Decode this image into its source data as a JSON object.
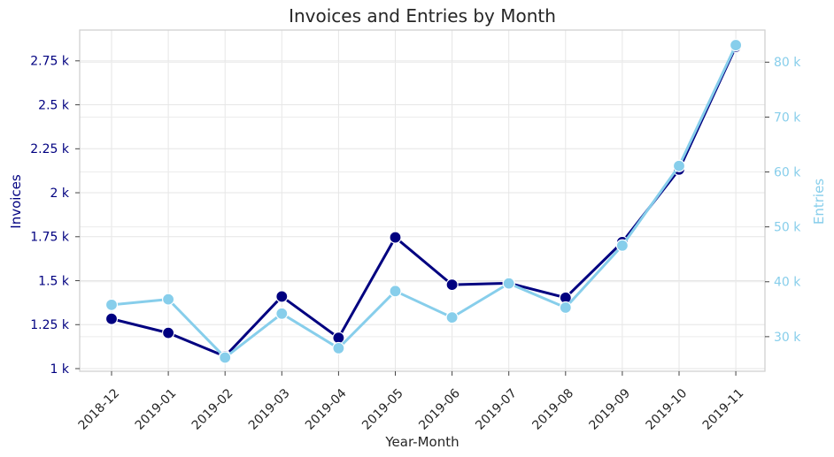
{
  "chart_data": {
    "type": "line",
    "title": "Invoices and Entries by Month",
    "xlabel": "Year-Month",
    "categories": [
      "2018-12",
      "2019-01",
      "2019-02",
      "2019-03",
      "2019-04",
      "2019-05",
      "2019-06",
      "2019-07",
      "2019-08",
      "2019-09",
      "2019-10",
      "2019-11"
    ],
    "left_axis": {
      "label": "Invoices",
      "ylim": [
        985,
        2925
      ],
      "ticks": [
        1000,
        1250,
        1500,
        1750,
        2000,
        2250,
        2500,
        2750
      ],
      "tick_labels": [
        "1 k",
        "1.25 k",
        "1.5 k",
        "1.75 k",
        "2 k",
        "2.25 k",
        "2.5 k",
        "2.75 k"
      ],
      "color": "#000080"
    },
    "right_axis": {
      "label": "Entries",
      "ylim": [
        23700,
        85850
      ],
      "ticks": [
        30000,
        40000,
        50000,
        60000,
        70000,
        80000
      ],
      "tick_labels": [
        "30 k",
        "40 k",
        "50 k",
        "60 k",
        "70 k",
        "80 k"
      ],
      "color": "#87ceeb"
    },
    "series": [
      {
        "axis": "left",
        "color": "#000080",
        "values": [
          1283,
          1203,
          1070,
          1410,
          1175,
          1746,
          1477,
          1486,
          1403,
          1719,
          2132,
          2830
        ]
      },
      {
        "axis": "right",
        "color": "#87ceeb",
        "values": [
          35800,
          36800,
          26200,
          34200,
          27900,
          38300,
          33500,
          39700,
          35300,
          46600,
          61100,
          83100
        ]
      }
    ],
    "grid": true
  }
}
